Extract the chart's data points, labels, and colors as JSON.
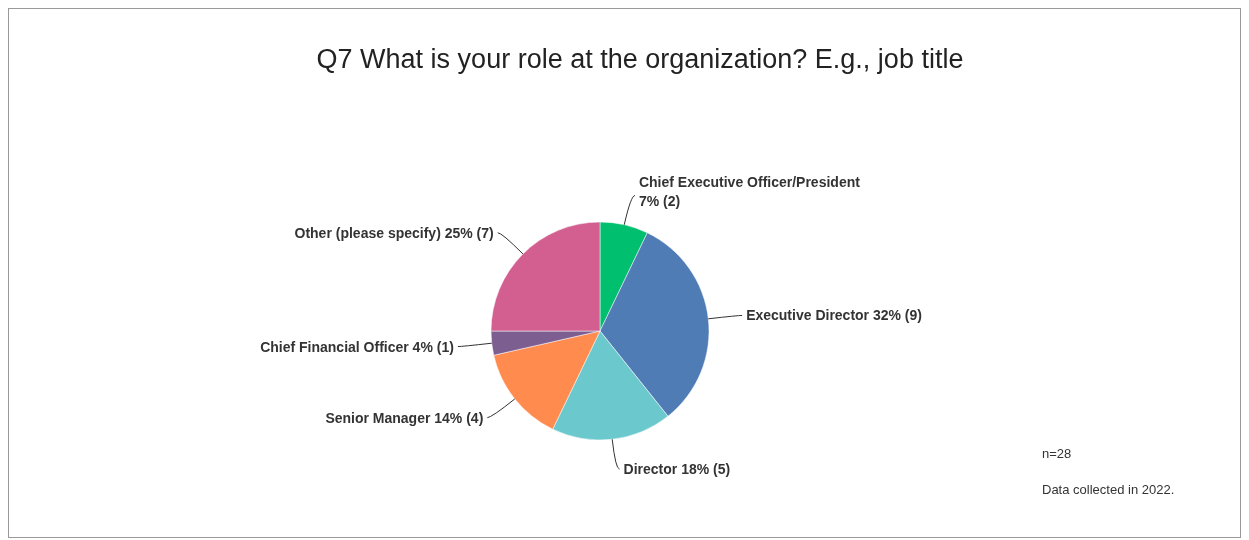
{
  "chart_data": {
    "type": "pie",
    "title": "Q7 What is your role at the organization? E.g., job title",
    "categories": [
      "Chief Executive Officer/President",
      "Executive Director",
      "Director ",
      "Senior Manager",
      "Chief Financial Officer",
      "Other (please specify)"
    ],
    "values": [
      2,
      9,
      5,
      4,
      1,
      7
    ],
    "value_labels": [
      "7% (2)",
      "32% (9)",
      "18% (5)",
      "14% (4)",
      "4% (1)",
      "25% (7)"
    ],
    "colors": [
      "#00bf6f",
      "#507cb6",
      "#6bc8cd",
      "#ff8b4f",
      "#7d5e90",
      "#d25f90"
    ],
    "annotations": [
      "n=28",
      "Data collected in 2022."
    ]
  }
}
